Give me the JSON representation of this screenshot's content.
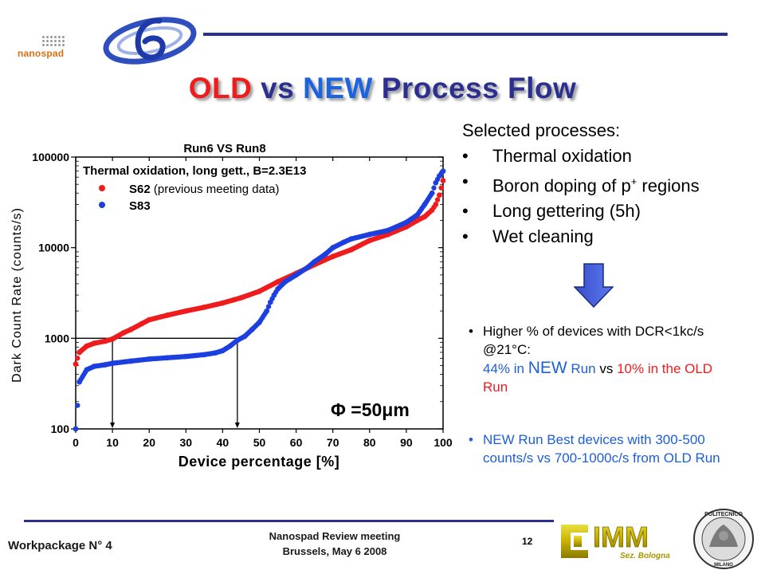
{
  "slide": {
    "title_old": "OLD",
    "title_vs": "vs",
    "title_new": "NEW",
    "title_rest": "Process Flow",
    "logo_nanospad": "nanospad",
    "logo_imm": "IMM",
    "logo_imm_sub": "Sez. Bologna",
    "logo_poli_top": "POLITECNICO",
    "logo_poli_bottom": "MILANO"
  },
  "right_panel": {
    "heading": "Selected processes:",
    "items": [
      "Thermal oxidation",
      "Boron doping of p",
      "Long gettering (5h)",
      "Wet cleaning"
    ],
    "item2_sup": "+",
    "item2_tail": " regions",
    "bullet1_line1": "Higher % of devices with DCR<1kc/s @21°C:",
    "bullet1_pct_new": "44% in ",
    "bullet1_new": "NEW",
    "bullet1_run_vs": " Run ",
    "bullet1_vs": "vs",
    "bullet1_pct_old": " 10% in the OLD Run",
    "bullet2": "NEW Run Best devices with 300-500 counts/s vs 700-1000c/s from OLD Run"
  },
  "footer": {
    "workpackage": "Workpackage N° 4",
    "meeting_line1": "Nanospad Review meeting",
    "meeting_line2": "Brussels, May 6 2008",
    "page_number": "12"
  },
  "chart_data": {
    "type": "scatter",
    "title": "Run6 VS Run8",
    "subtitle": "Thermal oxidation, long gett., B=2.3E13",
    "xlabel": "Device percentage [%]",
    "ylabel": "Dark Count Rate (counts/s)",
    "xlim": [
      0,
      100
    ],
    "ylim": [
      100,
      100000
    ],
    "y_scale": "log",
    "x_ticks": [
      "0",
      "10",
      "20",
      "30",
      "40",
      "50",
      "60",
      "70",
      "80",
      "90",
      "100"
    ],
    "y_ticks": [
      "100",
      "1000",
      "10000",
      "100000"
    ],
    "annotation": "Φ =50μm",
    "reference_level": 1000,
    "reference_x": [
      10,
      44
    ],
    "legend_placement": "top-left",
    "series": [
      {
        "name": "S62",
        "legend_note": " (previous meeting data)",
        "color": "#ee1c1c",
        "x": [
          0,
          1,
          3,
          5,
          8,
          10,
          13,
          15,
          18,
          20,
          25,
          30,
          35,
          40,
          45,
          50,
          55,
          60,
          65,
          70,
          75,
          80,
          85,
          90,
          93,
          95,
          97,
          98,
          99,
          100
        ],
        "y": [
          520,
          700,
          820,
          880,
          930,
          980,
          1150,
          1250,
          1450,
          1600,
          1800,
          2000,
          2200,
          2450,
          2800,
          3300,
          4200,
          5200,
          6500,
          8000,
          9500,
          12000,
          14000,
          17000,
          20000,
          22000,
          26000,
          30000,
          38000,
          55000
        ]
      },
      {
        "name": "S83",
        "legend_note": "",
        "color": "#1c3fe0",
        "x": [
          0,
          1,
          3,
          5,
          8,
          10,
          15,
          20,
          25,
          30,
          35,
          38,
          40,
          42,
          44,
          46,
          48,
          50,
          52,
          53,
          54,
          55,
          57,
          60,
          63,
          65,
          68,
          70,
          73,
          75,
          80,
          85,
          90,
          93,
          95,
          97,
          98,
          99,
          100
        ],
        "y": [
          100,
          330,
          450,
          490,
          510,
          530,
          560,
          590,
          610,
          630,
          660,
          690,
          730,
          820,
          950,
          1050,
          1250,
          1500,
          2000,
          2500,
          3000,
          3500,
          4200,
          5000,
          6000,
          7000,
          8500,
          10000,
          11500,
          12500,
          14000,
          15500,
          19000,
          23000,
          30000,
          40000,
          52000,
          62000,
          70000
        ]
      }
    ]
  }
}
